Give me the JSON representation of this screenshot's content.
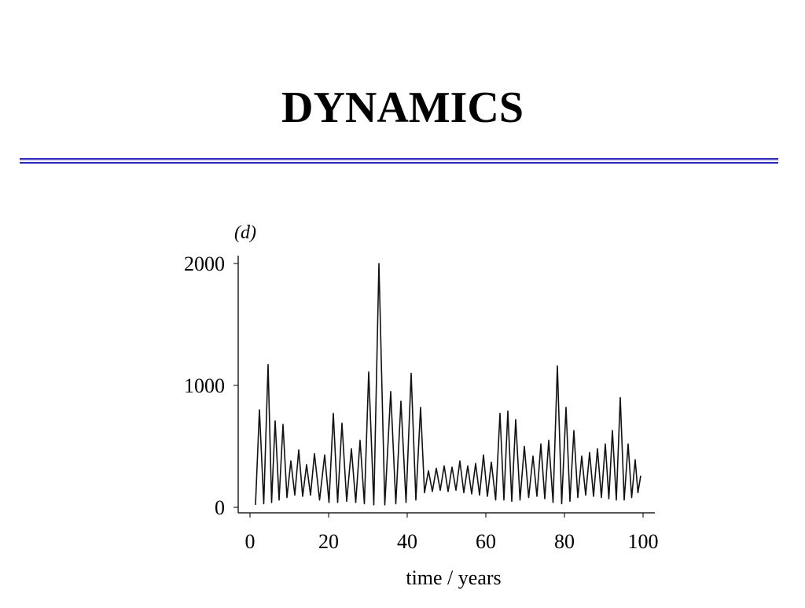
{
  "slide": {
    "title": "DYNAMICS"
  },
  "chart_data": {
    "type": "line",
    "annotation": "(d)",
    "xlabel": "time / years",
    "color": "#111111",
    "x": [
      1.4,
      2.4,
      3.5,
      4.6,
      5.5,
      6.4,
      7.4,
      8.4,
      9.4,
      10.4,
      11.4,
      12.4,
      13.4,
      14.4,
      15.4,
      16.4,
      17.7,
      19,
      20.1,
      21.2,
      22.3,
      23.4,
      24.6,
      25.8,
      26.9,
      28,
      29.1,
      30.2,
      31.5,
      32.8,
      34.3,
      35.8,
      37.1,
      38.4,
      39.7,
      41,
      42.2,
      43.4,
      44.4,
      45.4,
      46.4,
      47.4,
      48.4,
      49.4,
      50.4,
      51.4,
      52.4,
      53.4,
      54.4,
      55.4,
      56.4,
      57.4,
      58.4,
      59.4,
      60.4,
      61.4,
      62.5,
      63.6,
      64.6,
      65.6,
      66.6,
      67.6,
      68.7,
      69.8,
      70.9,
      72,
      73,
      74,
      75,
      76,
      77.1,
      78.2,
      79.3,
      80.4,
      81.4,
      82.4,
      83.4,
      84.4,
      85.4,
      86.4,
      87.4,
      88.4,
      89.4,
      90.4,
      91.3,
      92.2,
      93.2,
      94.2,
      95.2,
      96.2,
      97.1,
      98,
      98.7,
      99.4
    ],
    "values": [
      20,
      800,
      30,
      1170,
      40,
      710,
      60,
      680,
      80,
      380,
      100,
      470,
      90,
      350,
      100,
      440,
      60,
      430,
      40,
      770,
      40,
      690,
      50,
      480,
      40,
      550,
      30,
      1110,
      20,
      2000,
      20,
      950,
      30,
      870,
      40,
      1100,
      60,
      820,
      120,
      300,
      130,
      320,
      140,
      340,
      130,
      330,
      140,
      380,
      120,
      340,
      110,
      360,
      100,
      430,
      90,
      370,
      60,
      770,
      60,
      790,
      50,
      720,
      60,
      500,
      80,
      420,
      90,
      520,
      70,
      550,
      40,
      1160,
      30,
      820,
      50,
      630,
      80,
      420,
      100,
      450,
      90,
      480,
      80,
      520,
      70,
      630,
      60,
      900,
      60,
      520,
      80,
      390,
      120,
      260
    ],
    "xlim": [
      0,
      100
    ],
    "xticks": [
      0,
      20,
      40,
      60,
      80,
      100
    ],
    "ylim": [
      0,
      2000
    ],
    "yticks": [
      0,
      1000,
      2000
    ]
  }
}
